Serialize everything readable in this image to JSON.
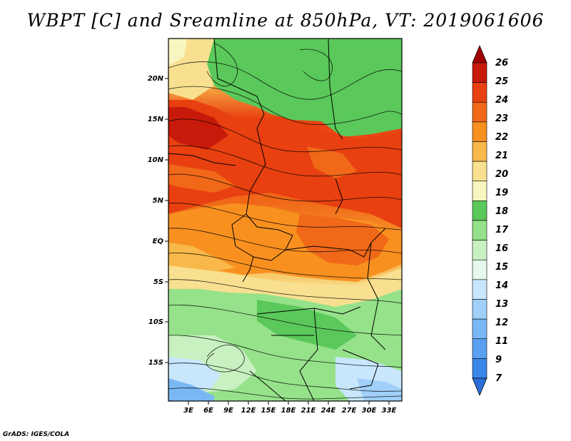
{
  "title": "WBPT [C] and Sreamline at 850hPa, VT: 2019061606",
  "credit": "GrADS: IGES/COLA",
  "map": {
    "lat_labels": [
      "20N",
      "15N",
      "10N",
      "5N",
      "EQ",
      "5S",
      "10S",
      "15S"
    ],
    "lon_labels": [
      "3E",
      "6E",
      "9E",
      "12E",
      "15E",
      "18E",
      "21E",
      "24E",
      "27E",
      "30E",
      "33E"
    ]
  },
  "colorbar": {
    "levels": [
      "7",
      "9",
      "11",
      "12",
      "13",
      "14",
      "15",
      "16",
      "17",
      "18",
      "19",
      "20",
      "21",
      "22",
      "23",
      "24",
      "25",
      "26"
    ],
    "colors": [
      "#2a6fd9",
      "#3a86e8",
      "#5aa0f0",
      "#7ab8f5",
      "#a0d0fa",
      "#c8e6fc",
      "#e6f8ec",
      "#c8f0c0",
      "#96e28a",
      "#5ac85a",
      "#f8f6c0",
      "#f8e090",
      "#f8b84a",
      "#f89020",
      "#f06818",
      "#e84010",
      "#c81a0a",
      "#a00000"
    ]
  },
  "colors": {
    "border": "#000000",
    "streamline": "#000000"
  }
}
